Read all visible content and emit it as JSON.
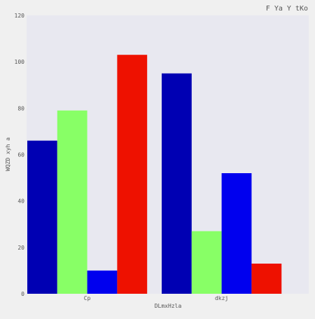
{
  "chart_data": {
    "type": "bar",
    "title": "F Ya Y tKo",
    "xlabel": "DLmxHzla",
    "ylabel": "WQZD xyh a",
    "categories": [
      "Cp",
      "dkzj"
    ],
    "series": [
      {
        "values": [
          66,
          95
        ],
        "color": "#0000b3"
      },
      {
        "values": [
          79,
          27
        ],
        "color": "#88ff66"
      },
      {
        "values": [
          10,
          52
        ],
        "color": "#0000ee"
      },
      {
        "values": [
          103,
          13
        ],
        "color": "#ee1100"
      }
    ],
    "ylim": [
      0,
      120
    ],
    "yticks": [
      0,
      20,
      40,
      60,
      80,
      100,
      120
    ],
    "grid": false,
    "legend": "none",
    "colors": {
      "plot_background": "#e8e8f0",
      "page_background": "#f0f0f0",
      "text": "#555555"
    }
  }
}
